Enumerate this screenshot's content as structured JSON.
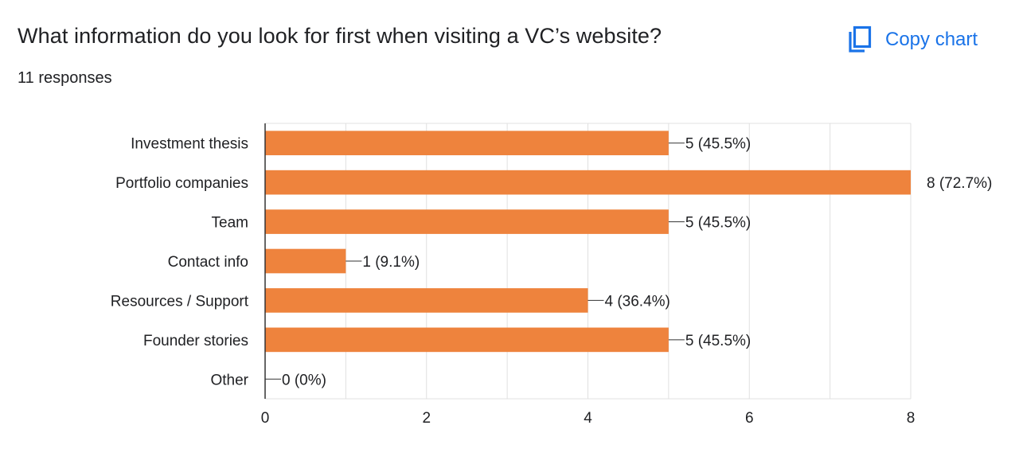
{
  "question": {
    "title": "What information do you look for first when visiting a VC’s website?",
    "responses": "11 responses"
  },
  "toolbar": {
    "copy_label": "Copy chart",
    "copy_icon": "copy-icon"
  },
  "colors": {
    "bar": "#ee833d",
    "accent": "#1a73e8",
    "grid": "#e0e0e0",
    "axis": "#333333",
    "text": "#202124"
  },
  "chart_data": {
    "type": "bar",
    "orientation": "horizontal",
    "title": "",
    "xlabel": "",
    "ylabel": "",
    "categories": [
      "Investment thesis",
      "Portfolio companies",
      "Team",
      "Contact info",
      "Resources / Support",
      "Founder stories",
      "Other"
    ],
    "values": [
      5,
      8,
      5,
      1,
      4,
      5,
      0
    ],
    "data_labels": [
      "5 (45.5%)",
      "8 (72.7%)",
      "5 (45.5%)",
      "1 (9.1%)",
      "4 (36.4%)",
      "5 (45.5%)",
      "0 (0%)"
    ],
    "xlim": [
      0,
      8
    ],
    "x_ticks": [
      0,
      2,
      4,
      6,
      8
    ],
    "x_minor_step": 1,
    "grid": true,
    "legend": "none"
  }
}
